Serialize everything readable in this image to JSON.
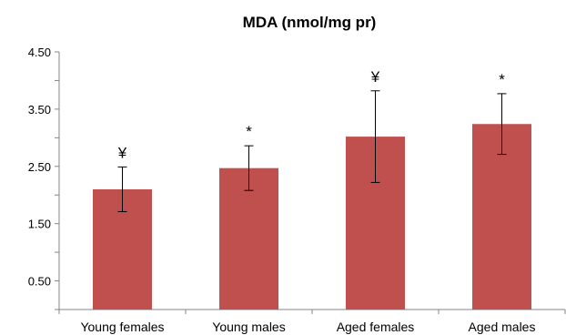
{
  "chart_data": {
    "type": "bar",
    "title": "MDA (nmol/mg pr)",
    "categories": [
      "Young females",
      "Young males",
      "Aged females",
      "Aged males"
    ],
    "values": [
      2.1,
      2.47,
      3.02,
      3.24
    ],
    "error": [
      0.39,
      0.39,
      0.8,
      0.53
    ],
    "annotations": [
      "¥",
      "*",
      "¥",
      "*"
    ],
    "ylim": [
      0,
      4.5
    ],
    "yticks": [
      "4.50",
      "3.50",
      "2.50",
      "1.50",
      "0.50"
    ],
    "ytick_values": [
      4.5,
      3.5,
      2.5,
      1.5,
      0.5
    ],
    "bar_color": "#C0504D",
    "grid": false,
    "legend": "none"
  }
}
